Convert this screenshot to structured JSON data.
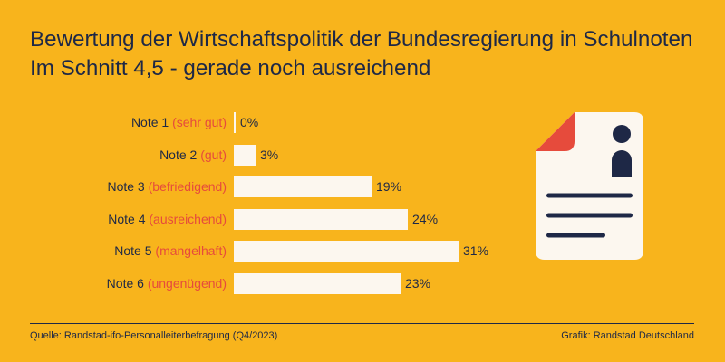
{
  "colors": {
    "background": "#F8B41C",
    "text": "#1E2846",
    "accent": "#E64B3C",
    "bar": "#FCF7EF"
  },
  "chart_data": {
    "type": "bar",
    "title": "Bewertung der Wirtschaftspolitik der Bundesregierung in Schulnoten",
    "subtitle": "Im Schnitt 4,5 - gerade noch ausreichend",
    "categories": [
      "Note 1",
      "Note 2",
      "Note 3",
      "Note 4",
      "Note 5",
      "Note 6"
    ],
    "category_descriptions": [
      "(sehr gut)",
      "(gut)",
      "(befriedigend)",
      "(ausreichend)",
      "(mangelhaft)",
      "(ungenügend)"
    ],
    "values": [
      0,
      3,
      19,
      24,
      31,
      23
    ],
    "value_labels": [
      "0%",
      "3%",
      "19%",
      "24%",
      "31%",
      "23%"
    ]
  },
  "footer": {
    "source": "Quelle: Randstad-ifo-Personalleiterbefragung (Q4/2023)",
    "credit": "Grafik: Randstad Deutschland"
  },
  "illustration": {
    "icon": "document-person-icon"
  }
}
